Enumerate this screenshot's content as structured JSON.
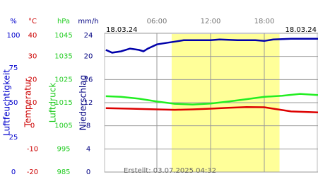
{
  "chart_data": {
    "type": "line",
    "xlim": [
      0,
      24
    ],
    "xticks": [
      {
        "value": 6,
        "label": "06:00"
      },
      {
        "value": 12,
        "label": "12:00"
      },
      {
        "value": 18,
        "label": "18:00"
      }
    ],
    "start_label": "18.03.24",
    "end_label": "18.03.24",
    "daylight": [
      7.65,
      19.7
    ],
    "created": "Erstellt: 03.07.2025 04:32",
    "grid": true,
    "axes": [
      {
        "unit": "%",
        "title": "Luftfeuchtigkeit",
        "color": "#0000cc",
        "ylim": [
          0,
          100
        ],
        "yticks": [
          0,
          25,
          50,
          75,
          100
        ]
      },
      {
        "unit": "°C",
        "title": "Temperatur",
        "color": "#cc0000",
        "ylim": [
          -20,
          40
        ],
        "yticks": [
          -20,
          -10,
          0,
          10,
          20,
          30,
          40
        ]
      },
      {
        "unit": "hPa",
        "title": "Luftdruck",
        "color": "#22cc22",
        "ylim": [
          985,
          1045
        ],
        "yticks": [
          985,
          995,
          1005,
          1015,
          1025,
          1035,
          1045
        ]
      },
      {
        "unit": "mm/h",
        "title": "Niederschlag",
        "color": "#000080",
        "ylim": [
          0,
          24
        ],
        "yticks": [
          0,
          4,
          8,
          12,
          16,
          20,
          24
        ]
      }
    ],
    "series": [
      {
        "name": "Luftfeuchtigkeit",
        "axis": 0,
        "color": "#0000aa",
        "x": [
          0.3,
          1,
          2,
          3,
          4,
          4.5,
          5,
          6,
          7,
          8,
          9,
          12,
          13,
          15,
          17,
          18,
          19,
          21,
          24
        ],
        "values": [
          88,
          86,
          87,
          89,
          88,
          87,
          89,
          92,
          93,
          94,
          95,
          95,
          95.5,
          95,
          95,
          94.5,
          95.5,
          96,
          96
        ]
      },
      {
        "name": "Luftdruck",
        "axis": 2,
        "color": "#22ee22",
        "x": [
          0.3,
          2,
          4,
          6,
          8,
          10,
          12,
          14,
          16,
          18,
          20,
          22,
          24
        ],
        "values": [
          1017.8,
          1017.5,
          1016.7,
          1015.5,
          1014.5,
          1014.2,
          1014.6,
          1015.5,
          1016.5,
          1017.5,
          1018,
          1018.8,
          1018.3
        ]
      },
      {
        "name": "Temperatur",
        "axis": 1,
        "color": "#dd0000",
        "x": [
          0.3,
          3,
          6,
          8,
          10,
          12,
          14,
          16,
          18,
          19,
          21,
          24
        ],
        "values": [
          7.6,
          7.4,
          7.1,
          6.9,
          7.1,
          7.4,
          7.8,
          8.1,
          8.0,
          7.4,
          6.2,
          5.8
        ]
      }
    ]
  }
}
